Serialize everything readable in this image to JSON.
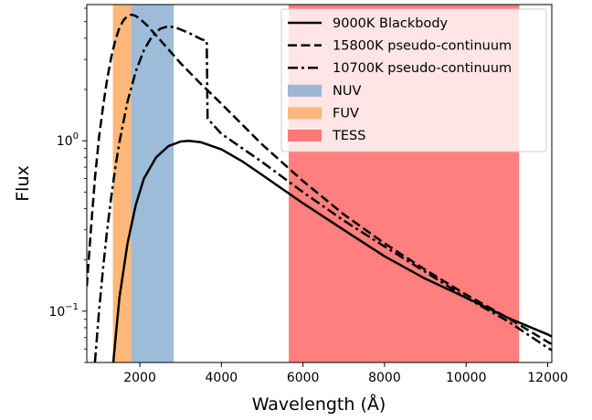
{
  "chart_data": {
    "type": "line",
    "xlabel": "Wavelength (Å)",
    "ylabel": "Flux",
    "xlim": [
      700,
      12100
    ],
    "ylim": [
      0.05,
      6.3
    ],
    "yscale": "log",
    "xticks": [
      2000,
      4000,
      6000,
      8000,
      10000,
      12000
    ],
    "xtick_labels": [
      "2000",
      "4000",
      "6000",
      "8000",
      "10000",
      "12000"
    ],
    "yticks": [
      {
        "value": 1,
        "base": "10",
        "exp": "0"
      },
      {
        "value": 0.1,
        "base": "10",
        "exp": "−1"
      }
    ],
    "legend_position": "upper right",
    "bands": [
      {
        "name": "NUV",
        "xmin": 1770,
        "xmax": 2830,
        "color": "#9dbcd9",
        "legend_color": "#9fb6d4"
      },
      {
        "name": "FUV",
        "xmin": 1340,
        "xmax": 1790,
        "color": "#ffb879",
        "legend_color": "#ffb77d"
      },
      {
        "name": "TESS",
        "xmin": 5650,
        "xmax": 11300,
        "color": "#ff7f7f",
        "legend_color": "#ff7777"
      }
    ],
    "series": [
      {
        "name": "9000K Blackbody",
        "dash": "solid",
        "x": [
          1350,
          1500,
          1700,
          1900,
          2100,
          2400,
          2700,
          3000,
          3200,
          3500,
          4000,
          4500,
          5000,
          6000,
          7000,
          8000,
          9000,
          10000,
          11000,
          12000,
          12100
        ],
        "y": [
          0.05,
          0.12,
          0.25,
          0.42,
          0.6,
          0.8,
          0.93,
          0.99,
          1.0,
          0.98,
          0.89,
          0.76,
          0.63,
          0.43,
          0.3,
          0.21,
          0.155,
          0.12,
          0.092,
          0.073,
          0.071
        ]
      },
      {
        "name": "15800K pseudo-continuum",
        "dash": "dashed",
        "x": [
          700,
          800,
          900,
          1000,
          1100,
          1200,
          1300,
          1400,
          1500,
          1600,
          1700,
          1800,
          1900,
          2000,
          2200,
          2500,
          3000,
          3500,
          3640,
          4000,
          5000,
          6000,
          7000,
          8000,
          9000,
          10000,
          11000,
          12000,
          12100
        ],
        "y": [
          0.14,
          0.3,
          0.6,
          1.05,
          1.6,
          2.3,
          3.1,
          3.9,
          4.6,
          5.1,
          5.4,
          5.5,
          5.4,
          5.2,
          4.7,
          3.9,
          2.85,
          2.15,
          2.0,
          1.65,
          0.95,
          0.58,
          0.37,
          0.25,
          0.175,
          0.125,
          0.092,
          0.066,
          0.064
        ]
      },
      {
        "name": "10700K pseudo-continuum",
        "dash": "dashdot",
        "x": [
          900,
          1000,
          1100,
          1200,
          1300,
          1400,
          1500,
          1700,
          1900,
          2100,
          2300,
          2500,
          2700,
          2900,
          3200,
          3500,
          3640,
          3660,
          4000,
          5000,
          6000,
          7000,
          8000,
          9000,
          10000,
          11000,
          12000,
          12100
        ],
        "y": [
          0.05,
          0.1,
          0.18,
          0.3,
          0.47,
          0.7,
          0.98,
          1.7,
          2.55,
          3.4,
          4.1,
          4.55,
          4.7,
          4.6,
          4.3,
          3.95,
          3.85,
          1.35,
          1.1,
          0.75,
          0.5,
          0.34,
          0.24,
          0.17,
          0.12,
          0.088,
          0.061,
          0.059
        ]
      }
    ]
  }
}
